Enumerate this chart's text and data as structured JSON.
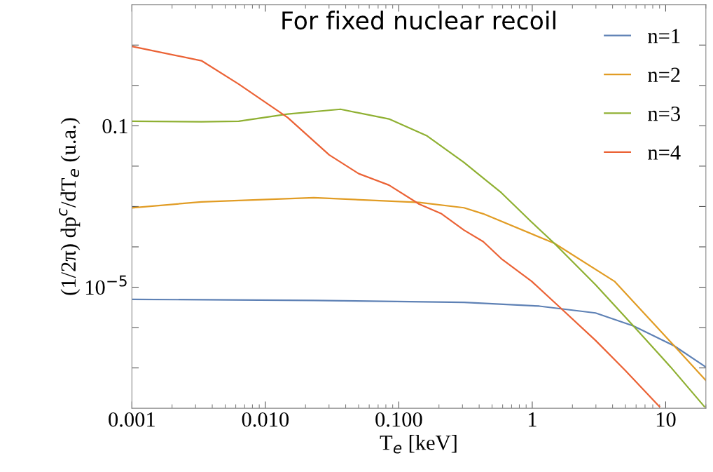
{
  "chart_data": {
    "type": "line",
    "title": "For fixed nuclear recoil",
    "xlabel": "T$_{e}$ [keV]",
    "ylabel": "(1/2π) dp$^{c}$/dT$_{e}$ (u.a.)",
    "log": "xy",
    "xlim": [
      0.001,
      20
    ],
    "ylim": [
      1e-08,
      100
    ],
    "xticks": [
      {
        "value": 0.001,
        "label": "0.001"
      },
      {
        "value": 0.01,
        "label": "0.010"
      },
      {
        "value": 0.1,
        "label": "0.100"
      },
      1,
      10
    ],
    "yticks": [
      {
        "value": 1e-07,
        "label": null
      },
      {
        "value": 1e-06,
        "label": null
      },
      {
        "value": 1e-05,
        "label": "10$^{−5}$"
      },
      {
        "value": 0.0001,
        "label": null
      },
      {
        "value": 0.001,
        "label": null
      },
      {
        "value": 0.01,
        "label": null
      },
      0.1,
      {
        "value": 1,
        "label": null
      },
      {
        "value": 10,
        "label": null
      }
    ],
    "grid": false,
    "legend": "top right",
    "marker": "none",
    "line_style": "solid",
    "series": [
      {
        "name": "n=1",
        "color": "#5e81b5",
        "x": [
          0.001,
          0.0231,
          0.308,
          1.13,
          2.98,
          5.73,
          11.6,
          20
        ],
        "values": [
          5e-06,
          4.7e-06,
          4.2e-06,
          3.4e-06,
          2.3e-06,
          1.1e-06,
          3.5e-07,
          1.05e-07
        ]
      },
      {
        "name": "n=2",
        "color": "#e19c24",
        "x": [
          0.001,
          0.00332,
          0.0231,
          0.142,
          0.308,
          0.429,
          1.46,
          4.13,
          11.6,
          20
        ],
        "values": [
          0.00093,
          0.0013,
          0.00166,
          0.00126,
          0.00093,
          0.00066,
          0.000123,
          1.4e-05,
          3.5e-07,
          4.9e-08
        ]
      },
      {
        "name": "n=3",
        "color": "#8fb032",
        "x": [
          0.001,
          0.00332,
          0.00631,
          0.0147,
          0.0366,
          0.0843,
          0.163,
          0.308,
          0.586,
          0.99,
          1.46,
          2.98,
          5.73,
          10.9,
          19.5
        ],
        "values": [
          0.13,
          0.126,
          0.13,
          0.195,
          0.257,
          0.148,
          0.056,
          0.0123,
          0.0022,
          0.00041,
          0.000123,
          1.15e-05,
          1.1e-06,
          1.05e-07,
          1.1e-08
        ]
      },
      {
        "name": "n=4",
        "color": "#eb6235",
        "x": [
          0.001,
          0.00332,
          0.00631,
          0.0147,
          0.0301,
          0.0501,
          0.0843,
          0.142,
          0.209,
          0.308,
          0.429,
          0.586,
          0.99,
          1.66,
          2.98,
          5.01,
          8.97
        ],
        "values": [
          9.3,
          4.1,
          1.08,
          0.16,
          0.019,
          0.0065,
          0.0034,
          0.00115,
          0.00066,
          0.00026,
          0.000135,
          5.1e-05,
          1.4e-05,
          2.9e-06,
          4.8e-07,
          8.5e-08,
          1.1e-08
        ]
      }
    ]
  }
}
